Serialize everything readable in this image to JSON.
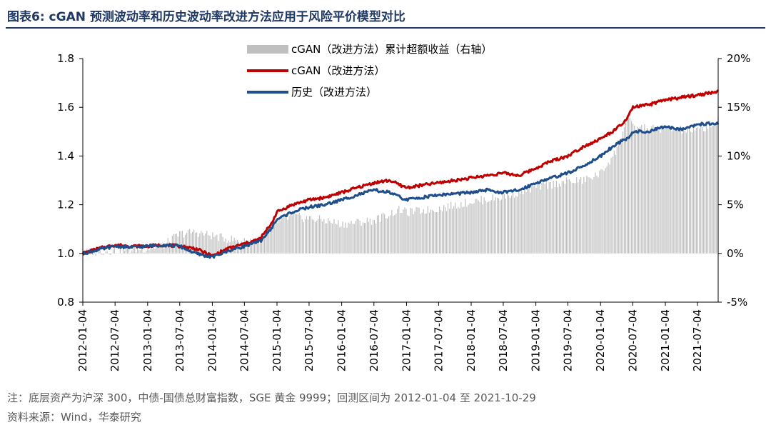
{
  "header": {
    "title": "图表6:   cGAN 预测波动率和历史波动率改进方法应用于风险平价模型对比"
  },
  "footer": {
    "note": "注：底层资产为沪深 300，中债-国债总财富指数，SGE 黄金 9999；回测区间为 2012-01-04 至 2021-10-29",
    "source": "资料来源：Wind，华泰研究"
  },
  "colors": {
    "cgan": "#c00000",
    "hist": "#1f4e8c",
    "excess": "#bfbfbf"
  },
  "chart_data": {
    "type": "line",
    "x_tick_labels": [
      "2012-01-04",
      "2012-07-04",
      "2013-01-04",
      "2013-07-04",
      "2014-01-04",
      "2014-07-04",
      "2015-01-04",
      "2015-07-04",
      "2016-01-04",
      "2016-07-04",
      "2017-01-04",
      "2017-07-04",
      "2018-01-04",
      "2018-07-04",
      "2019-01-04",
      "2019-07-04",
      "2020-01-04",
      "2020-07-04",
      "2021-01-04",
      "2021-07-04"
    ],
    "x_range": [
      "2012-01-04",
      "2021-10-29"
    ],
    "y_left": {
      "range": [
        0.8,
        1.8
      ],
      "ticks": [
        "0.8",
        "1.0",
        "1.2",
        "1.4",
        "1.6",
        "1.8"
      ]
    },
    "y_right": {
      "range": [
        -5,
        20
      ],
      "ticks": [
        "-5%",
        "0%",
        "5%",
        "10%",
        "15%",
        "20%"
      ]
    },
    "grid": false,
    "legend_position": "top-center",
    "legend": [
      {
        "key": "excess",
        "label": "cGAN（改进方法）累计超额收益（右轴）"
      },
      {
        "key": "cgan",
        "label": "cGAN（改进方法）"
      },
      {
        "key": "hist",
        "label": "历史（改进方法）"
      }
    ],
    "series": [
      {
        "name": "cGAN（改进方法）",
        "axis": "left",
        "style": "line",
        "x": [
          "2012-01-04",
          "2012-04-01",
          "2012-07-04",
          "2012-10-01",
          "2013-01-04",
          "2013-04-01",
          "2013-07-04",
          "2013-10-01",
          "2014-01-04",
          "2014-04-01",
          "2014-07-04",
          "2014-10-01",
          "2014-12-01",
          "2015-01-04",
          "2015-04-01",
          "2015-07-04",
          "2015-10-01",
          "2016-01-04",
          "2016-04-01",
          "2016-07-04",
          "2016-10-01",
          "2016-12-01",
          "2017-01-04",
          "2017-04-01",
          "2017-07-04",
          "2017-10-01",
          "2018-01-04",
          "2018-04-01",
          "2018-07-04",
          "2018-10-01",
          "2019-01-04",
          "2019-04-01",
          "2019-07-04",
          "2019-10-01",
          "2020-01-04",
          "2020-04-01",
          "2020-06-01",
          "2020-07-04",
          "2020-10-01",
          "2021-01-04",
          "2021-04-01",
          "2021-07-04",
          "2021-10-29"
        ],
        "values": [
          1.0,
          1.02,
          1.035,
          1.03,
          1.03,
          1.035,
          1.03,
          1.02,
          0.99,
          1.02,
          1.04,
          1.06,
          1.12,
          1.17,
          1.2,
          1.22,
          1.23,
          1.25,
          1.27,
          1.29,
          1.3,
          1.28,
          1.27,
          1.28,
          1.29,
          1.3,
          1.31,
          1.32,
          1.33,
          1.32,
          1.35,
          1.38,
          1.4,
          1.44,
          1.47,
          1.51,
          1.55,
          1.6,
          1.61,
          1.63,
          1.64,
          1.65,
          1.665
        ]
      },
      {
        "name": "历史（改进方法）",
        "axis": "left",
        "style": "line",
        "x": [
          "2012-01-04",
          "2012-04-01",
          "2012-07-04",
          "2012-10-01",
          "2013-01-04",
          "2013-04-01",
          "2013-07-04",
          "2013-10-01",
          "2014-01-04",
          "2014-04-01",
          "2014-07-04",
          "2014-10-01",
          "2014-12-01",
          "2015-01-04",
          "2015-04-01",
          "2015-07-04",
          "2015-10-01",
          "2016-01-04",
          "2016-04-01",
          "2016-07-04",
          "2016-10-01",
          "2016-12-01",
          "2017-01-04",
          "2017-04-01",
          "2017-07-04",
          "2017-10-01",
          "2018-01-04",
          "2018-04-01",
          "2018-07-04",
          "2018-10-01",
          "2019-01-04",
          "2019-04-01",
          "2019-07-04",
          "2019-10-01",
          "2020-01-04",
          "2020-04-01",
          "2020-06-01",
          "2020-07-04",
          "2020-10-01",
          "2021-01-04",
          "2021-04-01",
          "2021-07-04",
          "2021-10-29"
        ],
        "values": [
          1.0,
          1.015,
          1.03,
          1.025,
          1.03,
          1.035,
          1.03,
          1.0,
          0.985,
          1.01,
          1.03,
          1.05,
          1.1,
          1.14,
          1.17,
          1.19,
          1.2,
          1.22,
          1.24,
          1.26,
          1.25,
          1.23,
          1.22,
          1.23,
          1.24,
          1.245,
          1.25,
          1.26,
          1.25,
          1.26,
          1.29,
          1.31,
          1.33,
          1.36,
          1.4,
          1.45,
          1.47,
          1.5,
          1.5,
          1.52,
          1.51,
          1.53,
          1.535
        ]
      },
      {
        "name": "cGAN（改进方法）累计超额收益（右轴）",
        "axis": "right",
        "style": "bar",
        "x": [
          "2012-01-04",
          "2012-07-04",
          "2013-01-04",
          "2013-04-01",
          "2013-07-04",
          "2013-10-01",
          "2014-01-04",
          "2014-04-01",
          "2014-07-04",
          "2014-10-01",
          "2015-01-04",
          "2015-04-01",
          "2015-07-04",
          "2015-10-01",
          "2016-01-04",
          "2016-07-04",
          "2016-12-01",
          "2017-01-04",
          "2017-07-04",
          "2018-01-04",
          "2018-07-04",
          "2019-01-04",
          "2019-07-04",
          "2019-10-01",
          "2020-01-04",
          "2020-04-01",
          "2020-06-01",
          "2020-07-04",
          "2020-10-01",
          "2021-01-04",
          "2021-07-04",
          "2021-10-29"
        ],
        "values": [
          0.1,
          0.3,
          0.5,
          0.8,
          2.0,
          2.2,
          1.8,
          1.5,
          1.2,
          1.6,
          3.2,
          3.8,
          3.6,
          3.4,
          3.0,
          3.4,
          4.5,
          4.2,
          4.6,
          5.3,
          5.8,
          6.8,
          7.4,
          7.5,
          8.2,
          10.5,
          14.0,
          13.0,
          12.8,
          12.8,
          12.6,
          13.5
        ]
      }
    ]
  }
}
